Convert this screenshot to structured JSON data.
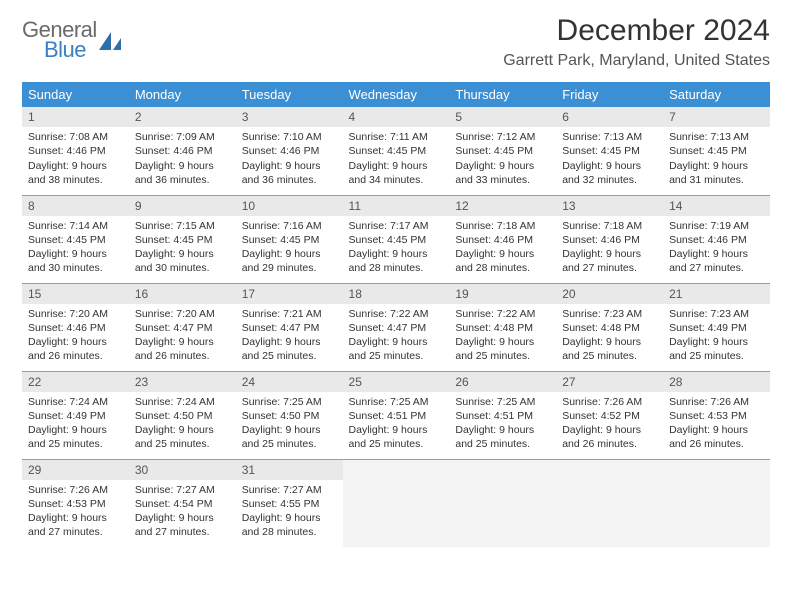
{
  "logo": {
    "text_top": "General",
    "text_bottom": "Blue"
  },
  "title": "December 2024",
  "location": "Garrett Park, Maryland, United States",
  "colors": {
    "header_bg": "#3b8fd4",
    "header_text": "#ffffff",
    "daynum_bg": "#e9e9e9",
    "cell_border": "#7aa7c9",
    "logo_gray": "#6a6a6a",
    "logo_blue": "#3b7fc4",
    "body_text": "#333333"
  },
  "weekdays": [
    "Sunday",
    "Monday",
    "Tuesday",
    "Wednesday",
    "Thursday",
    "Friday",
    "Saturday"
  ],
  "first_day_col": 0,
  "days": [
    {
      "n": 1,
      "sr": "7:08 AM",
      "ss": "4:46 PM",
      "dl": "9 hours and 38 minutes."
    },
    {
      "n": 2,
      "sr": "7:09 AM",
      "ss": "4:46 PM",
      "dl": "9 hours and 36 minutes."
    },
    {
      "n": 3,
      "sr": "7:10 AM",
      "ss": "4:46 PM",
      "dl": "9 hours and 36 minutes."
    },
    {
      "n": 4,
      "sr": "7:11 AM",
      "ss": "4:45 PM",
      "dl": "9 hours and 34 minutes."
    },
    {
      "n": 5,
      "sr": "7:12 AM",
      "ss": "4:45 PM",
      "dl": "9 hours and 33 minutes."
    },
    {
      "n": 6,
      "sr": "7:13 AM",
      "ss": "4:45 PM",
      "dl": "9 hours and 32 minutes."
    },
    {
      "n": 7,
      "sr": "7:13 AM",
      "ss": "4:45 PM",
      "dl": "9 hours and 31 minutes."
    },
    {
      "n": 8,
      "sr": "7:14 AM",
      "ss": "4:45 PM",
      "dl": "9 hours and 30 minutes."
    },
    {
      "n": 9,
      "sr": "7:15 AM",
      "ss": "4:45 PM",
      "dl": "9 hours and 30 minutes."
    },
    {
      "n": 10,
      "sr": "7:16 AM",
      "ss": "4:45 PM",
      "dl": "9 hours and 29 minutes."
    },
    {
      "n": 11,
      "sr": "7:17 AM",
      "ss": "4:45 PM",
      "dl": "9 hours and 28 minutes."
    },
    {
      "n": 12,
      "sr": "7:18 AM",
      "ss": "4:46 PM",
      "dl": "9 hours and 28 minutes."
    },
    {
      "n": 13,
      "sr": "7:18 AM",
      "ss": "4:46 PM",
      "dl": "9 hours and 27 minutes."
    },
    {
      "n": 14,
      "sr": "7:19 AM",
      "ss": "4:46 PM",
      "dl": "9 hours and 27 minutes."
    },
    {
      "n": 15,
      "sr": "7:20 AM",
      "ss": "4:46 PM",
      "dl": "9 hours and 26 minutes."
    },
    {
      "n": 16,
      "sr": "7:20 AM",
      "ss": "4:47 PM",
      "dl": "9 hours and 26 minutes."
    },
    {
      "n": 17,
      "sr": "7:21 AM",
      "ss": "4:47 PM",
      "dl": "9 hours and 25 minutes."
    },
    {
      "n": 18,
      "sr": "7:22 AM",
      "ss": "4:47 PM",
      "dl": "9 hours and 25 minutes."
    },
    {
      "n": 19,
      "sr": "7:22 AM",
      "ss": "4:48 PM",
      "dl": "9 hours and 25 minutes."
    },
    {
      "n": 20,
      "sr": "7:23 AM",
      "ss": "4:48 PM",
      "dl": "9 hours and 25 minutes."
    },
    {
      "n": 21,
      "sr": "7:23 AM",
      "ss": "4:49 PM",
      "dl": "9 hours and 25 minutes."
    },
    {
      "n": 22,
      "sr": "7:24 AM",
      "ss": "4:49 PM",
      "dl": "9 hours and 25 minutes."
    },
    {
      "n": 23,
      "sr": "7:24 AM",
      "ss": "4:50 PM",
      "dl": "9 hours and 25 minutes."
    },
    {
      "n": 24,
      "sr": "7:25 AM",
      "ss": "4:50 PM",
      "dl": "9 hours and 25 minutes."
    },
    {
      "n": 25,
      "sr": "7:25 AM",
      "ss": "4:51 PM",
      "dl": "9 hours and 25 minutes."
    },
    {
      "n": 26,
      "sr": "7:25 AM",
      "ss": "4:51 PM",
      "dl": "9 hours and 25 minutes."
    },
    {
      "n": 27,
      "sr": "7:26 AM",
      "ss": "4:52 PM",
      "dl": "9 hours and 26 minutes."
    },
    {
      "n": 28,
      "sr": "7:26 AM",
      "ss": "4:53 PM",
      "dl": "9 hours and 26 minutes."
    },
    {
      "n": 29,
      "sr": "7:26 AM",
      "ss": "4:53 PM",
      "dl": "9 hours and 27 minutes."
    },
    {
      "n": 30,
      "sr": "7:27 AM",
      "ss": "4:54 PM",
      "dl": "9 hours and 27 minutes."
    },
    {
      "n": 31,
      "sr": "7:27 AM",
      "ss": "4:55 PM",
      "dl": "9 hours and 28 minutes."
    }
  ],
  "labels": {
    "sunrise_prefix": "Sunrise: ",
    "sunset_prefix": "Sunset: ",
    "daylight_prefix": "Daylight: "
  }
}
